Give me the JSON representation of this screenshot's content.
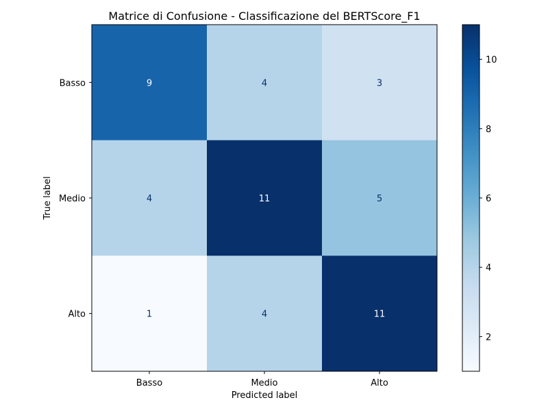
{
  "chart_data": {
    "type": "heatmap",
    "title": "Matrice di Confusione - Classificazione del BERTScore_F1",
    "xlabel": "Predicted label",
    "ylabel": "True label",
    "x_categories": [
      "Basso",
      "Medio",
      "Alto"
    ],
    "y_categories": [
      "Basso",
      "Medio",
      "Alto"
    ],
    "values": [
      [
        9,
        4,
        3
      ],
      [
        4,
        11,
        5
      ],
      [
        1,
        4,
        11
      ]
    ],
    "colormap": "Blues",
    "color_range": [
      1,
      11
    ],
    "colorbar_ticks": [
      2,
      4,
      6,
      8,
      10
    ],
    "text_color_dark": "#08306b",
    "text_color_light": "#ffffff"
  }
}
